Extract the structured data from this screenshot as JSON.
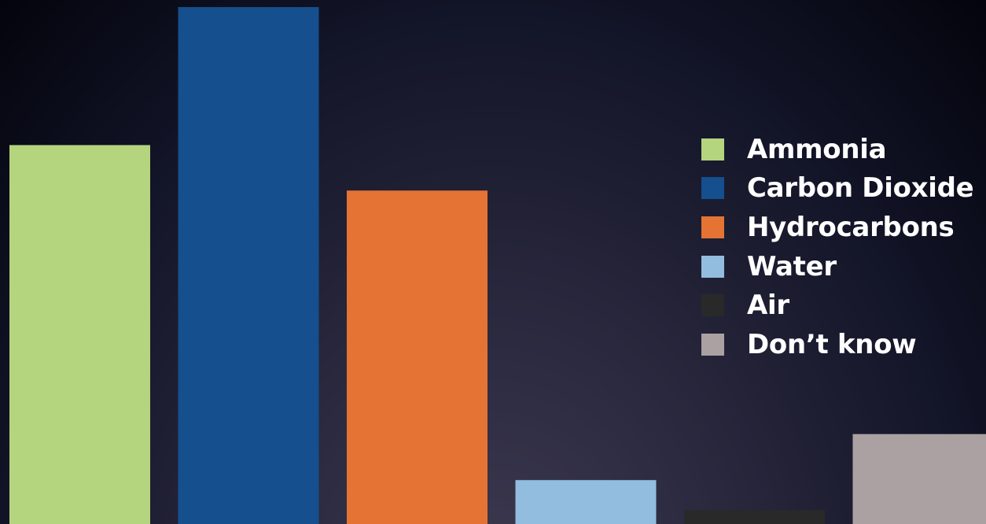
{
  "chart_data": {
    "type": "bar",
    "categories": [
      "Ammonia",
      "Carbon Dioxide",
      "Hydrocarbons",
      "Water",
      "Air",
      "Don’t know"
    ],
    "values": [
      73.3,
      100,
      64.5,
      8.5,
      2.7,
      17.4
    ],
    "colors": [
      "#b4d47e",
      "#154f8d",
      "#e57334",
      "#92bddf",
      "#292929",
      "#aba1a2"
    ],
    "ylim": [
      0,
      100
    ],
    "title": "",
    "xlabel": "",
    "ylabel": "",
    "grid": false,
    "legend": "right",
    "legend_entries": [
      "Ammonia",
      "Carbon Dioxide",
      "Hydrocarbons",
      "Water",
      "Air",
      "Don’t know"
    ]
  }
}
